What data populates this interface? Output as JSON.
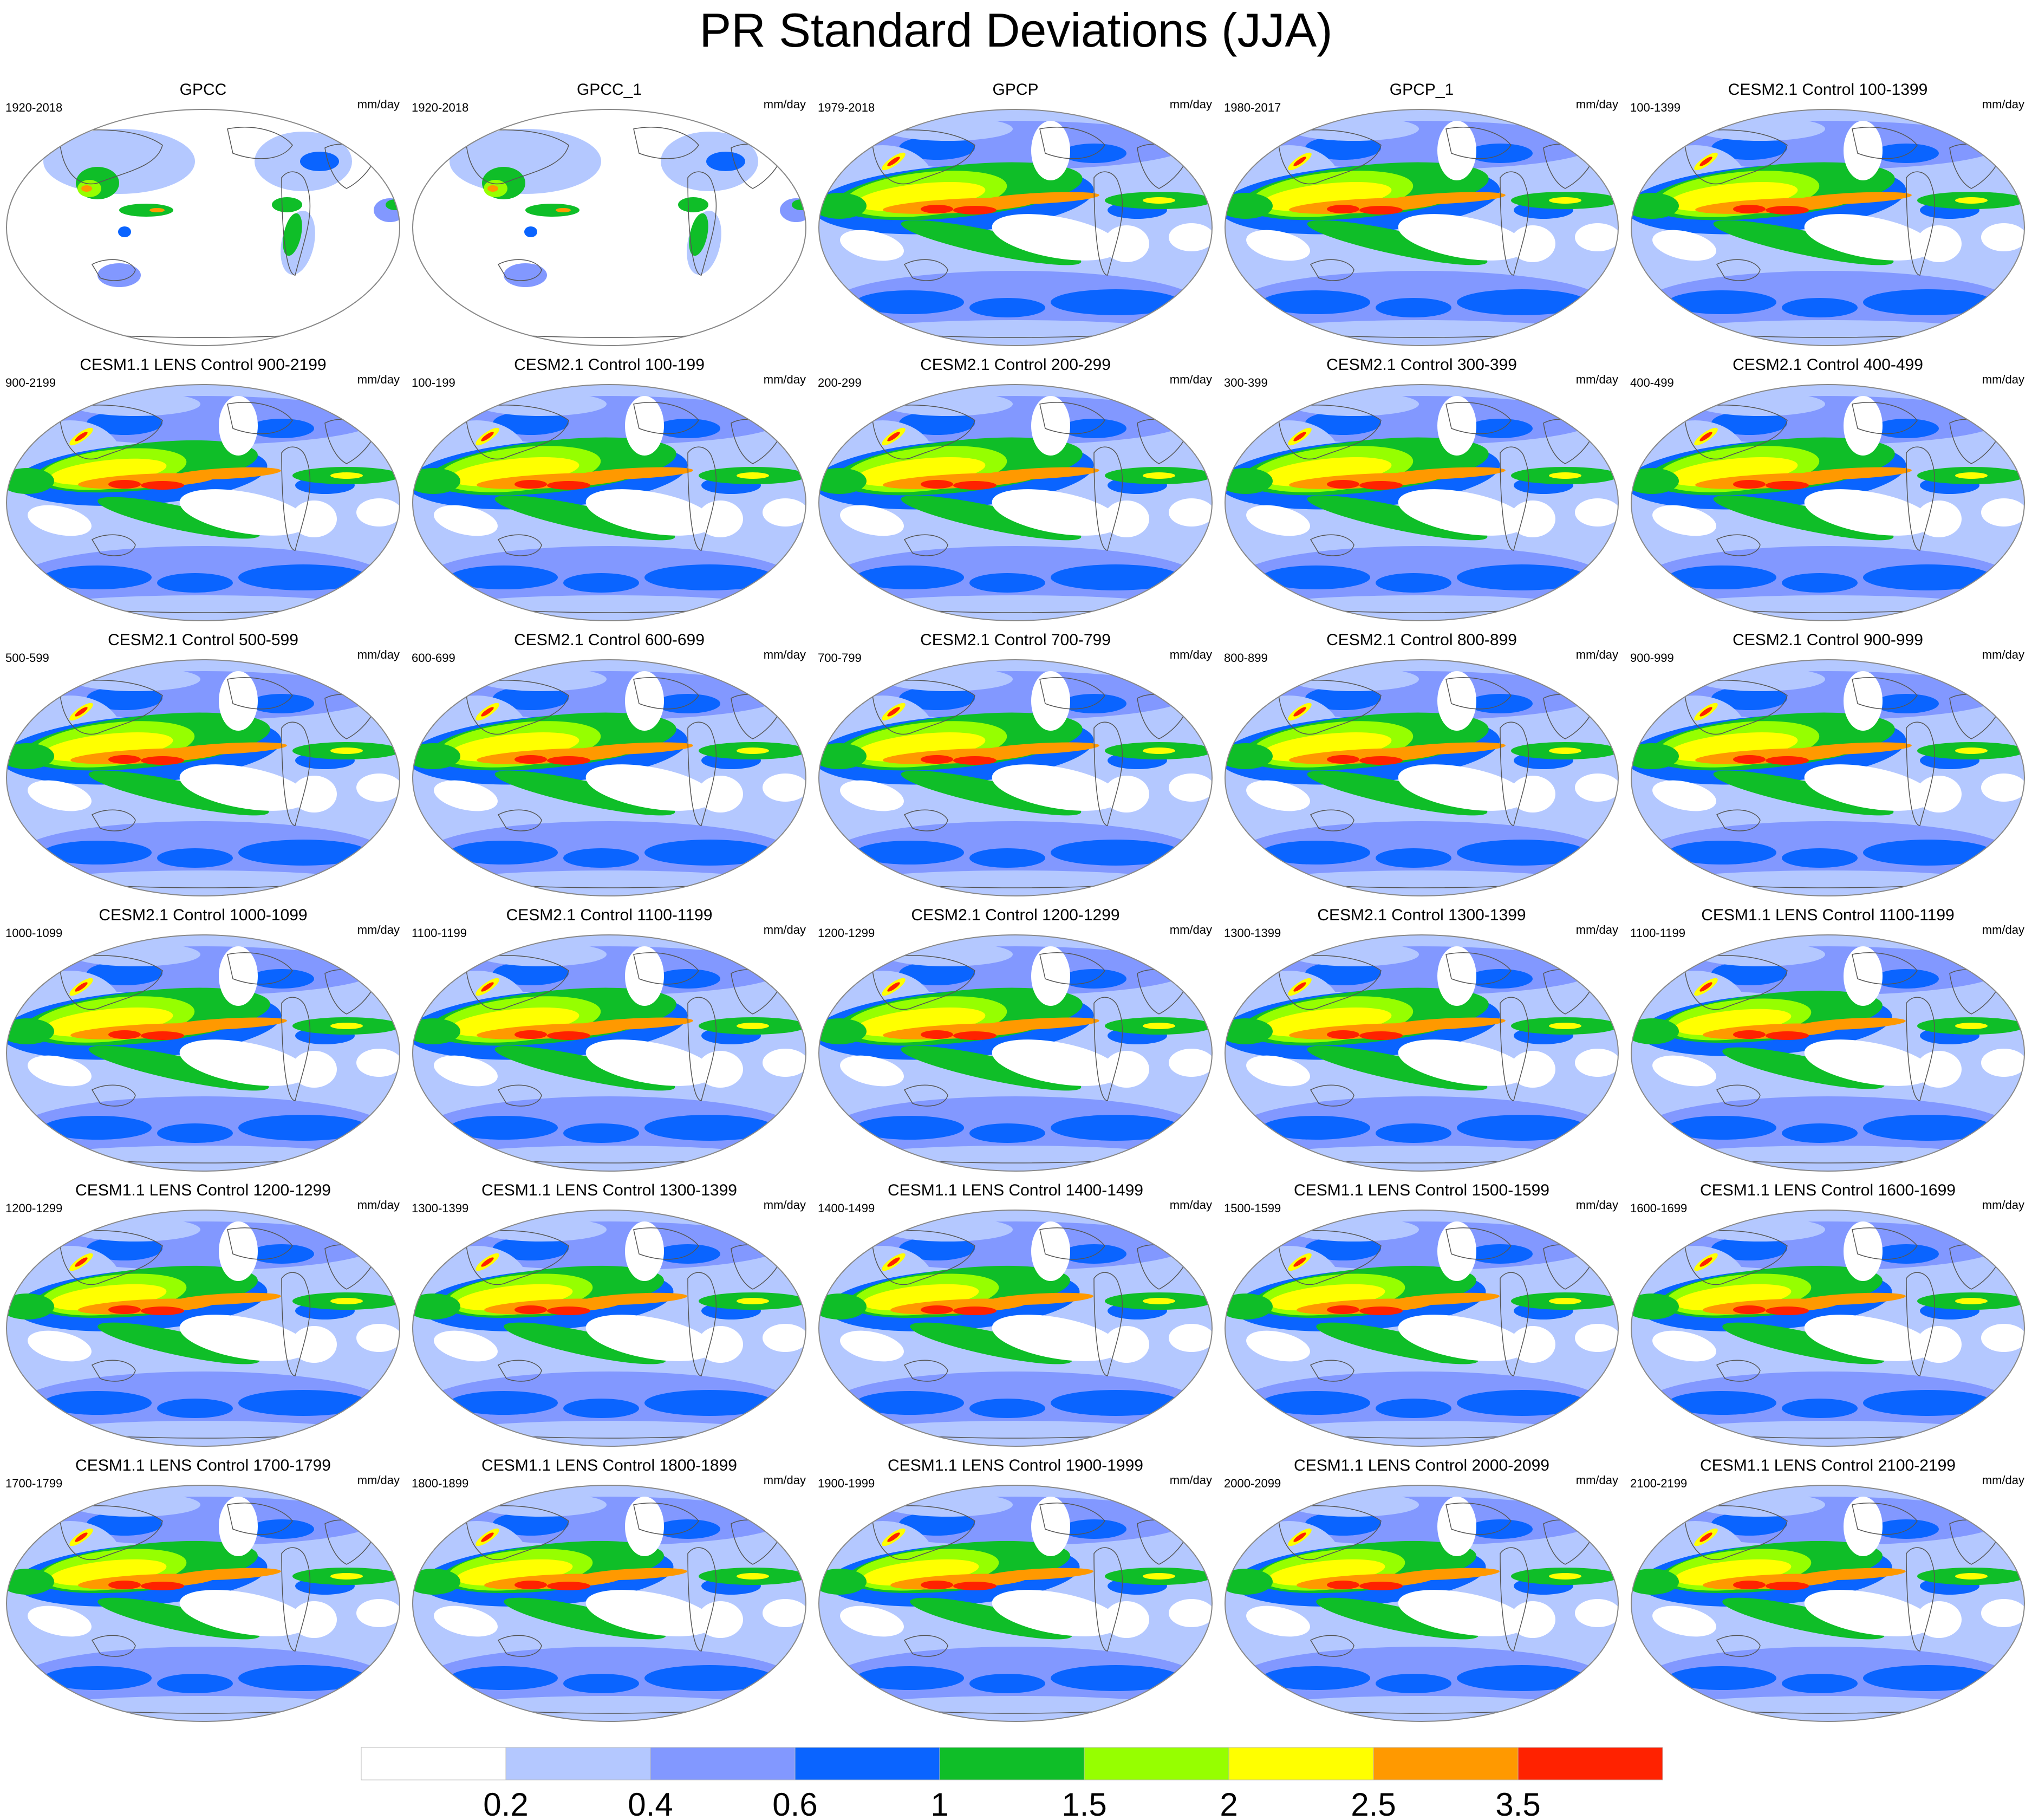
{
  "title": "PR Standard Deviations (JJA)",
  "units": "mm/day",
  "panels": [
    {
      "name": "GPCC",
      "period": "1920-2018",
      "kind": "gauge"
    },
    {
      "name": "GPCC_1",
      "period": "1920-2018",
      "kind": "gauge"
    },
    {
      "name": "GPCP",
      "period": "1979-2018",
      "kind": "sat"
    },
    {
      "name": "GPCP_1",
      "period": "1980-2017",
      "kind": "sat"
    },
    {
      "name": "CESM2.1 Control 100-1399",
      "period": "100-1399",
      "kind": "cesm2"
    },
    {
      "name": "CESM1.1 LENS Control 900-2199",
      "period": "900-2199",
      "kind": "cesm1"
    },
    {
      "name": "CESM2.1 Control 100-199",
      "period": "100-199",
      "kind": "cesm2"
    },
    {
      "name": "CESM2.1 Control 200-299",
      "period": "200-299",
      "kind": "cesm2"
    },
    {
      "name": "CESM2.1 Control 300-399",
      "period": "300-399",
      "kind": "cesm2"
    },
    {
      "name": "CESM2.1 Control 400-499",
      "period": "400-499",
      "kind": "cesm2"
    },
    {
      "name": "CESM2.1 Control 500-599",
      "period": "500-599",
      "kind": "cesm2"
    },
    {
      "name": "CESM2.1 Control 600-699",
      "period": "600-699",
      "kind": "cesm2"
    },
    {
      "name": "CESM2.1 Control 700-799",
      "period": "700-799",
      "kind": "cesm2"
    },
    {
      "name": "CESM2.1 Control 800-899",
      "period": "800-899",
      "kind": "cesm2"
    },
    {
      "name": "CESM2.1 Control 900-999",
      "period": "900-999",
      "kind": "cesm2"
    },
    {
      "name": "CESM2.1 Control 1000-1099",
      "period": "1000-1099",
      "kind": "cesm2"
    },
    {
      "name": "CESM2.1 Control 1100-1199",
      "period": "1100-1199",
      "kind": "cesm2"
    },
    {
      "name": "CESM2.1 Control 1200-1299",
      "period": "1200-1299",
      "kind": "cesm2"
    },
    {
      "name": "CESM2.1 Control 1300-1399",
      "period": "1300-1399",
      "kind": "cesm2"
    },
    {
      "name": "CESM1.1 LENS Control 1100-1199",
      "period": "1100-1199",
      "kind": "cesm1"
    },
    {
      "name": "CESM1.1 LENS Control 1200-1299",
      "period": "1200-1299",
      "kind": "cesm1"
    },
    {
      "name": "CESM1.1 LENS Control 1300-1399",
      "period": "1300-1399",
      "kind": "cesm1"
    },
    {
      "name": "CESM1.1 LENS Control 1400-1499",
      "period": "1400-1499",
      "kind": "cesm1"
    },
    {
      "name": "CESM1.1 LENS Control 1500-1599",
      "period": "1500-1599",
      "kind": "cesm1"
    },
    {
      "name": "CESM1.1 LENS Control 1600-1699",
      "period": "1600-1699",
      "kind": "cesm1"
    },
    {
      "name": "CESM1.1 LENS Control 1700-1799",
      "period": "1700-1799",
      "kind": "cesm1"
    },
    {
      "name": "CESM1.1 LENS Control 1800-1899",
      "period": "1800-1899",
      "kind": "cesm1"
    },
    {
      "name": "CESM1.1 LENS Control 1900-1999",
      "period": "1900-1999",
      "kind": "cesm1"
    },
    {
      "name": "CESM1.1 LENS Control 2000-2099",
      "period": "2000-2099",
      "kind": "cesm1"
    },
    {
      "name": "CESM1.1 LENS Control 2100-2199",
      "period": "2100-2199",
      "kind": "cesm1"
    }
  ],
  "legend": {
    "colors": [
      "#ffffff",
      "#b4c8ff",
      "#8298ff",
      "#0a64ff",
      "#0fbe28",
      "#96ff00",
      "#ffff00",
      "#ff9900",
      "#ff2200"
    ],
    "labels": [
      "0.2",
      "0.4",
      "0.6",
      "1",
      "1.5",
      "2",
      "2.5",
      "3.5"
    ]
  },
  "colors": {
    "land_outline": "#555555",
    "map_frame": "#888888"
  }
}
